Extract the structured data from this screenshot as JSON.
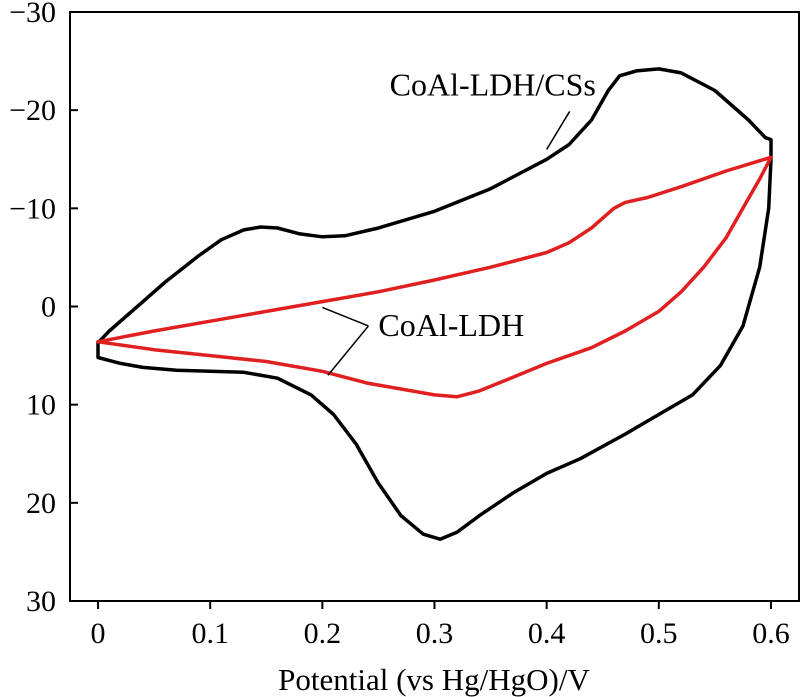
{
  "chart_data": {
    "type": "line",
    "title": "",
    "xlabel": "Potential (vs Hg/HgO)/V",
    "ylabel": "",
    "xlim": [
      -0.025,
      0.625
    ],
    "ylim": [
      30,
      -30
    ],
    "x_ticks": [
      0,
      0.1,
      0.2,
      0.3,
      0.4,
      0.5,
      0.6
    ],
    "x_tick_labels": [
      "0",
      "0.1",
      "0.2",
      "0.3",
      "0.4",
      "0.5",
      "0.6"
    ],
    "y_ticks": [
      -30,
      -20,
      -10,
      0,
      10,
      20,
      30
    ],
    "y_tick_labels": [
      "−30",
      "−20",
      "−10",
      "0",
      "10",
      "20",
      "30"
    ],
    "grid": false,
    "legend": "none",
    "series": [
      {
        "name": "CoAl-LDH/CSs",
        "color": "#000000",
        "points": [
          [
            0,
            3.7
          ],
          [
            0.01,
            2.5
          ],
          [
            0.03,
            0.5
          ],
          [
            0.06,
            -2.5
          ],
          [
            0.09,
            -5.2
          ],
          [
            0.11,
            -6.8
          ],
          [
            0.13,
            -7.8
          ],
          [
            0.145,
            -8.1
          ],
          [
            0.16,
            -8.0
          ],
          [
            0.18,
            -7.4
          ],
          [
            0.2,
            -7.1
          ],
          [
            0.22,
            -7.2
          ],
          [
            0.25,
            -8.0
          ],
          [
            0.3,
            -9.7
          ],
          [
            0.35,
            -12
          ],
          [
            0.4,
            -15
          ],
          [
            0.42,
            -16.5
          ],
          [
            0.44,
            -19
          ],
          [
            0.455,
            -22
          ],
          [
            0.465,
            -23.5
          ],
          [
            0.48,
            -24
          ],
          [
            0.5,
            -24.2
          ],
          [
            0.52,
            -23.8
          ],
          [
            0.55,
            -22
          ],
          [
            0.58,
            -19
          ],
          [
            0.595,
            -17.2
          ],
          [
            0.6,
            -17
          ],
          [
            0.6,
            -15
          ],
          [
            0.598,
            -10
          ],
          [
            0.59,
            -4
          ],
          [
            0.575,
            2
          ],
          [
            0.555,
            6
          ],
          [
            0.53,
            9
          ],
          [
            0.5,
            11
          ],
          [
            0.47,
            13
          ],
          [
            0.43,
            15.5
          ],
          [
            0.4,
            17
          ],
          [
            0.37,
            19
          ],
          [
            0.34,
            21.3
          ],
          [
            0.32,
            23
          ],
          [
            0.305,
            23.7
          ],
          [
            0.29,
            23.2
          ],
          [
            0.27,
            21.3
          ],
          [
            0.25,
            18
          ],
          [
            0.23,
            14
          ],
          [
            0.21,
            11
          ],
          [
            0.19,
            9
          ],
          [
            0.16,
            7.3
          ],
          [
            0.13,
            6.7
          ],
          [
            0.1,
            6.6
          ],
          [
            0.07,
            6.5
          ],
          [
            0.04,
            6.2
          ],
          [
            0.02,
            5.8
          ],
          [
            0,
            5.2
          ],
          [
            0,
            3.7
          ]
        ]
      },
      {
        "name": "CoAl-LDH",
        "color": "#e02020",
        "points": [
          [
            0,
            3.6
          ],
          [
            0.05,
            2.5
          ],
          [
            0.1,
            1.5
          ],
          [
            0.15,
            0.5
          ],
          [
            0.2,
            -0.5
          ],
          [
            0.25,
            -1.5
          ],
          [
            0.3,
            -2.7
          ],
          [
            0.35,
            -4
          ],
          [
            0.4,
            -5.5
          ],
          [
            0.42,
            -6.5
          ],
          [
            0.44,
            -8
          ],
          [
            0.46,
            -10
          ],
          [
            0.47,
            -10.6
          ],
          [
            0.49,
            -11.1
          ],
          [
            0.52,
            -12.2
          ],
          [
            0.56,
            -13.8
          ],
          [
            0.6,
            -15.2
          ],
          [
            0.59,
            -13
          ],
          [
            0.575,
            -10
          ],
          [
            0.56,
            -7
          ],
          [
            0.54,
            -4
          ],
          [
            0.52,
            -1.5
          ],
          [
            0.5,
            0.5
          ],
          [
            0.47,
            2.5
          ],
          [
            0.44,
            4.2
          ],
          [
            0.4,
            5.8
          ],
          [
            0.37,
            7.2
          ],
          [
            0.34,
            8.6
          ],
          [
            0.32,
            9.2
          ],
          [
            0.3,
            9.0
          ],
          [
            0.27,
            8.4
          ],
          [
            0.24,
            7.8
          ],
          [
            0.2,
            6.6
          ],
          [
            0.15,
            5.6
          ],
          [
            0.1,
            5.0
          ],
          [
            0.05,
            4.4
          ],
          [
            0,
            3.6
          ]
        ]
      }
    ],
    "annotations": [
      {
        "text": "CoAl-LDH/CSs",
        "target_series": "CoAl-LDH/CSs",
        "target_point": [
          0.4,
          -16
        ],
        "text_anchor_point": [
          0.26,
          -21.5
        ]
      },
      {
        "text": "CoAl-LDH",
        "target_series": "CoAl-LDH",
        "target_points": [
          [
            0.2,
            0.1
          ],
          [
            0.205,
            7
          ]
        ],
        "text_anchor_point": [
          0.25,
          3
        ]
      }
    ]
  }
}
